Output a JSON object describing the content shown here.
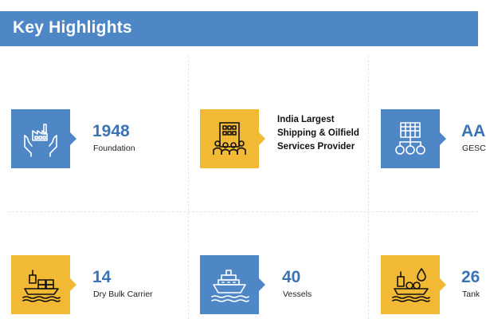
{
  "header": {
    "title": "Key Highlights",
    "color": "#4f86c6"
  },
  "highlights": [
    {
      "value": "1948",
      "label": "Foundation",
      "icon": "factory-in-hands-icon",
      "tile_color": "blue"
    },
    {
      "value": "",
      "label": "India Largest Shipping & Oilfield Services Provider",
      "icon": "office-building-people-icon",
      "tile_color": "yellow"
    },
    {
      "value": "AA",
      "label": "GESC",
      "icon": "building-network-icon",
      "tile_color": "blue"
    },
    {
      "value": "14",
      "label": "Dry Bulk Carrier",
      "icon": "cargo-ship-icon",
      "tile_color": "yellow"
    },
    {
      "value": "40",
      "label": "Vessels",
      "icon": "cruise-ship-icon",
      "tile_color": "blue"
    },
    {
      "value": "26",
      "label": "Tank",
      "icon": "tanker-ship-icon",
      "tile_color": "yellow"
    }
  ],
  "colors": {
    "blue": "#4f86c6",
    "yellow": "#f2b935",
    "number_text": "#3b73b5"
  }
}
